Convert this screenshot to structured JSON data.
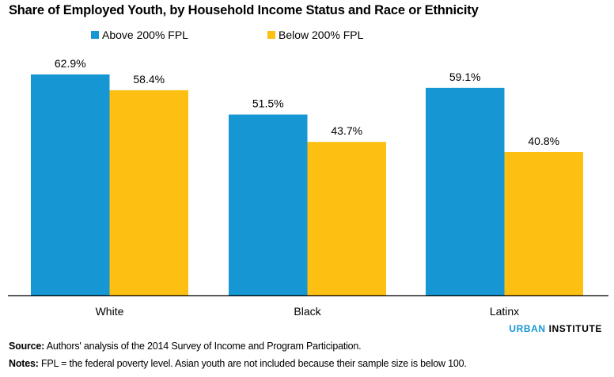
{
  "chart_data": {
    "type": "bar",
    "title": "Share of Employed Youth, by Household Income Status and Race or Ethnicity",
    "categories": [
      "White",
      "Black",
      "Latinx"
    ],
    "series": [
      {
        "name": "Above 200% FPL",
        "color": "#1696d2",
        "values": [
          62.9,
          51.5,
          59.1
        ],
        "labels": [
          "62.9%",
          "51.5%",
          "59.1%"
        ]
      },
      {
        "name": "Below 200% FPL",
        "color": "#fdbf11",
        "values": [
          58.4,
          43.7,
          40.8
        ],
        "labels": [
          "58.4%",
          "43.7%",
          "40.8%"
        ]
      }
    ],
    "xlabel": "",
    "ylabel": "",
    "ylim": [
      0,
      70
    ],
    "grid": false,
    "legend": "top-center",
    "axis_color": "#000000"
  },
  "brand": {
    "part1": "URBAN",
    "part2": "INSTITUTE"
  },
  "source": {
    "label": "Source:",
    "text": " Authors' analysis of the 2014 Survey of Income and Program Participation."
  },
  "notes": {
    "label": "Notes:",
    "text": " FPL = the federal poverty level. Asian youth are not included because their sample size is below 100."
  }
}
